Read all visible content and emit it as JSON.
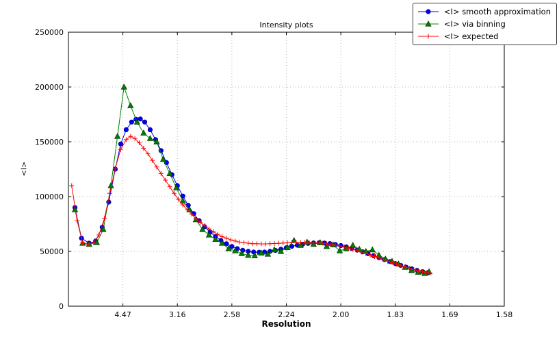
{
  "chart_data": {
    "type": "line",
    "title": "Intensity plots",
    "xlabel": "Resolution",
    "ylabel": "<I>",
    "grid": true,
    "grid_color": "#b5b5b5",
    "legend_position": "top-right",
    "x_axis": {
      "min": 0.0,
      "max": 0.4,
      "note_units": "tick labels are d-spacings (A) on a 1/d^2 linear scale",
      "ticks": [
        {
          "pos": 0.05,
          "label": "4.47"
        },
        {
          "pos": 0.1,
          "label": "3.16"
        },
        {
          "pos": 0.15,
          "label": "2.58"
        },
        {
          "pos": 0.2,
          "label": "2.24"
        },
        {
          "pos": 0.25,
          "label": "2.00"
        },
        {
          "pos": 0.3,
          "label": "1.83"
        },
        {
          "pos": 0.35,
          "label": "1.69"
        },
        {
          "pos": 0.4,
          "label": "1.58"
        }
      ]
    },
    "y_axis": {
      "min": 0,
      "max": 250000,
      "ticks": [
        {
          "pos": 0,
          "label": "0"
        },
        {
          "pos": 50000,
          "label": "50000"
        },
        {
          "pos": 100000,
          "label": "100000"
        },
        {
          "pos": 150000,
          "label": "150000"
        },
        {
          "pos": 200000,
          "label": "200000"
        },
        {
          "pos": 250000,
          "label": "250000"
        }
      ]
    },
    "series": [
      {
        "name": "<I> smooth approximation",
        "color": "#0000ff",
        "edge": "#00008b",
        "marker": "circle",
        "points": [
          [
            0.006,
            90000
          ],
          [
            0.012,
            62000
          ],
          [
            0.019,
            57500
          ],
          [
            0.025,
            59500
          ],
          [
            0.031,
            72000
          ],
          [
            0.037,
            95000
          ],
          [
            0.043,
            125000
          ],
          [
            0.048,
            148000
          ],
          [
            0.053,
            161000
          ],
          [
            0.058,
            168000
          ],
          [
            0.062,
            170500
          ],
          [
            0.066,
            170800
          ],
          [
            0.07,
            168000
          ],
          [
            0.075,
            161000
          ],
          [
            0.08,
            152000
          ],
          [
            0.085,
            142000
          ],
          [
            0.09,
            131000
          ],
          [
            0.095,
            120000
          ],
          [
            0.1,
            110000
          ],
          [
            0.105,
            100500
          ],
          [
            0.11,
            92000
          ],
          [
            0.115,
            84500
          ],
          [
            0.12,
            78000
          ],
          [
            0.125,
            72500
          ],
          [
            0.13,
            67500
          ],
          [
            0.135,
            63500
          ],
          [
            0.14,
            60000
          ],
          [
            0.145,
            57000
          ],
          [
            0.15,
            54500
          ],
          [
            0.155,
            52500
          ],
          [
            0.16,
            51000
          ],
          [
            0.165,
            50000
          ],
          [
            0.17,
            49400
          ],
          [
            0.175,
            49200
          ],
          [
            0.18,
            49400
          ],
          [
            0.185,
            50000
          ],
          [
            0.19,
            50900
          ],
          [
            0.195,
            52000
          ],
          [
            0.2,
            53300
          ],
          [
            0.205,
            54600
          ],
          [
            0.21,
            55700
          ],
          [
            0.215,
            56600
          ],
          [
            0.22,
            57300
          ],
          [
            0.225,
            57700
          ],
          [
            0.23,
            57800
          ],
          [
            0.235,
            57600
          ],
          [
            0.24,
            57100
          ],
          [
            0.245,
            56300
          ],
          [
            0.25,
            55300
          ],
          [
            0.255,
            54100
          ],
          [
            0.26,
            52700
          ],
          [
            0.265,
            51200
          ],
          [
            0.27,
            49600
          ],
          [
            0.275,
            47900
          ],
          [
            0.28,
            46100
          ],
          [
            0.285,
            44300
          ],
          [
            0.29,
            42500
          ],
          [
            0.295,
            40700
          ],
          [
            0.3,
            38900
          ],
          [
            0.305,
            37200
          ],
          [
            0.31,
            35600
          ],
          [
            0.315,
            34100
          ],
          [
            0.32,
            32700
          ],
          [
            0.325,
            31500
          ],
          [
            0.33,
            30500
          ]
        ]
      },
      {
        "name": "<I> via binning",
        "color": "#008000",
        "edge": "#004000",
        "marker": "triangle",
        "points": [
          [
            0.006,
            88000
          ],
          [
            0.013,
            57500
          ],
          [
            0.019,
            56500
          ],
          [
            0.026,
            58000
          ],
          [
            0.032,
            70000
          ],
          [
            0.039,
            110000
          ],
          [
            0.045,
            155000
          ],
          [
            0.051,
            200000
          ],
          [
            0.057,
            183000
          ],
          [
            0.063,
            168000
          ],
          [
            0.069,
            158000
          ],
          [
            0.075,
            153000
          ],
          [
            0.081,
            150000
          ],
          [
            0.087,
            134000
          ],
          [
            0.093,
            121000
          ],
          [
            0.099,
            108000
          ],
          [
            0.105,
            96000
          ],
          [
            0.111,
            88000
          ],
          [
            0.117,
            79000
          ],
          [
            0.123,
            70000
          ],
          [
            0.129,
            65000
          ],
          [
            0.135,
            61000
          ],
          [
            0.141,
            57500
          ],
          [
            0.147,
            52500
          ],
          [
            0.153,
            50500
          ],
          [
            0.159,
            48000
          ],
          [
            0.165,
            46500
          ],
          [
            0.171,
            46000
          ],
          [
            0.177,
            48500
          ],
          [
            0.183,
            47500
          ],
          [
            0.189,
            51500
          ],
          [
            0.195,
            50000
          ],
          [
            0.201,
            53500
          ],
          [
            0.207,
            60000
          ],
          [
            0.213,
            55500
          ],
          [
            0.219,
            58500
          ],
          [
            0.225,
            56500
          ],
          [
            0.231,
            58000
          ],
          [
            0.237,
            54500
          ],
          [
            0.243,
            56000
          ],
          [
            0.249,
            50500
          ],
          [
            0.255,
            52500
          ],
          [
            0.261,
            55500
          ],
          [
            0.267,
            52000
          ],
          [
            0.273,
            50000
          ],
          [
            0.279,
            51500
          ],
          [
            0.285,
            46500
          ],
          [
            0.291,
            43000
          ],
          [
            0.297,
            41000
          ],
          [
            0.303,
            38500
          ],
          [
            0.309,
            35500
          ],
          [
            0.315,
            32500
          ],
          [
            0.321,
            31000
          ],
          [
            0.327,
            30000
          ],
          [
            0.331,
            31500
          ]
        ]
      },
      {
        "name": "<I> expected",
        "color": "#ff0000",
        "edge": "#ff0000",
        "marker": "plus",
        "points": [
          [
            0.003,
            110000
          ],
          [
            0.008,
            78000
          ],
          [
            0.013,
            58000
          ],
          [
            0.018,
            56500
          ],
          [
            0.023,
            58000
          ],
          [
            0.028,
            65000
          ],
          [
            0.033,
            80000
          ],
          [
            0.038,
            103000
          ],
          [
            0.043,
            126000
          ],
          [
            0.048,
            143000
          ],
          [
            0.053,
            152000
          ],
          [
            0.057,
            155000
          ],
          [
            0.061,
            153000
          ],
          [
            0.065,
            149000
          ],
          [
            0.069,
            144000
          ],
          [
            0.073,
            139000
          ],
          [
            0.077,
            133000
          ],
          [
            0.081,
            127000
          ],
          [
            0.085,
            121000
          ],
          [
            0.089,
            115000
          ],
          [
            0.093,
            109000
          ],
          [
            0.097,
            103000
          ],
          [
            0.101,
            97500
          ],
          [
            0.105,
            92500
          ],
          [
            0.109,
            88000
          ],
          [
            0.113,
            84000
          ],
          [
            0.117,
            80000
          ],
          [
            0.121,
            76500
          ],
          [
            0.125,
            73500
          ],
          [
            0.129,
            70500
          ],
          [
            0.133,
            68000
          ],
          [
            0.137,
            65500
          ],
          [
            0.141,
            63500
          ],
          [
            0.145,
            62000
          ],
          [
            0.149,
            60500
          ],
          [
            0.153,
            59500
          ],
          [
            0.157,
            58500
          ],
          [
            0.161,
            58000
          ],
          [
            0.165,
            57500
          ],
          [
            0.169,
            57000
          ],
          [
            0.173,
            57000
          ],
          [
            0.177,
            56800
          ],
          [
            0.181,
            56800
          ],
          [
            0.185,
            57000
          ],
          [
            0.189,
            57200
          ],
          [
            0.193,
            57400
          ],
          [
            0.197,
            57600
          ],
          [
            0.201,
            57800
          ],
          [
            0.205,
            58000
          ],
          [
            0.209,
            58100
          ],
          [
            0.213,
            58200
          ],
          [
            0.217,
            58200
          ],
          [
            0.221,
            58100
          ],
          [
            0.225,
            58000
          ],
          [
            0.229,
            57800
          ],
          [
            0.233,
            57500
          ],
          [
            0.237,
            57000
          ],
          [
            0.241,
            56400
          ],
          [
            0.245,
            55700
          ],
          [
            0.249,
            54900
          ],
          [
            0.253,
            54000
          ],
          [
            0.257,
            53000
          ],
          [
            0.261,
            51900
          ],
          [
            0.265,
            50700
          ],
          [
            0.269,
            49400
          ],
          [
            0.273,
            48100
          ],
          [
            0.277,
            46700
          ],
          [
            0.281,
            45300
          ],
          [
            0.285,
            43900
          ],
          [
            0.289,
            42500
          ],
          [
            0.293,
            41100
          ],
          [
            0.297,
            39700
          ],
          [
            0.301,
            38300
          ],
          [
            0.305,
            37000
          ],
          [
            0.309,
            35700
          ],
          [
            0.313,
            34500
          ],
          [
            0.317,
            33400
          ],
          [
            0.321,
            32400
          ],
          [
            0.325,
            31500
          ],
          [
            0.329,
            30700
          ],
          [
            0.332,
            30000
          ]
        ]
      }
    ]
  }
}
